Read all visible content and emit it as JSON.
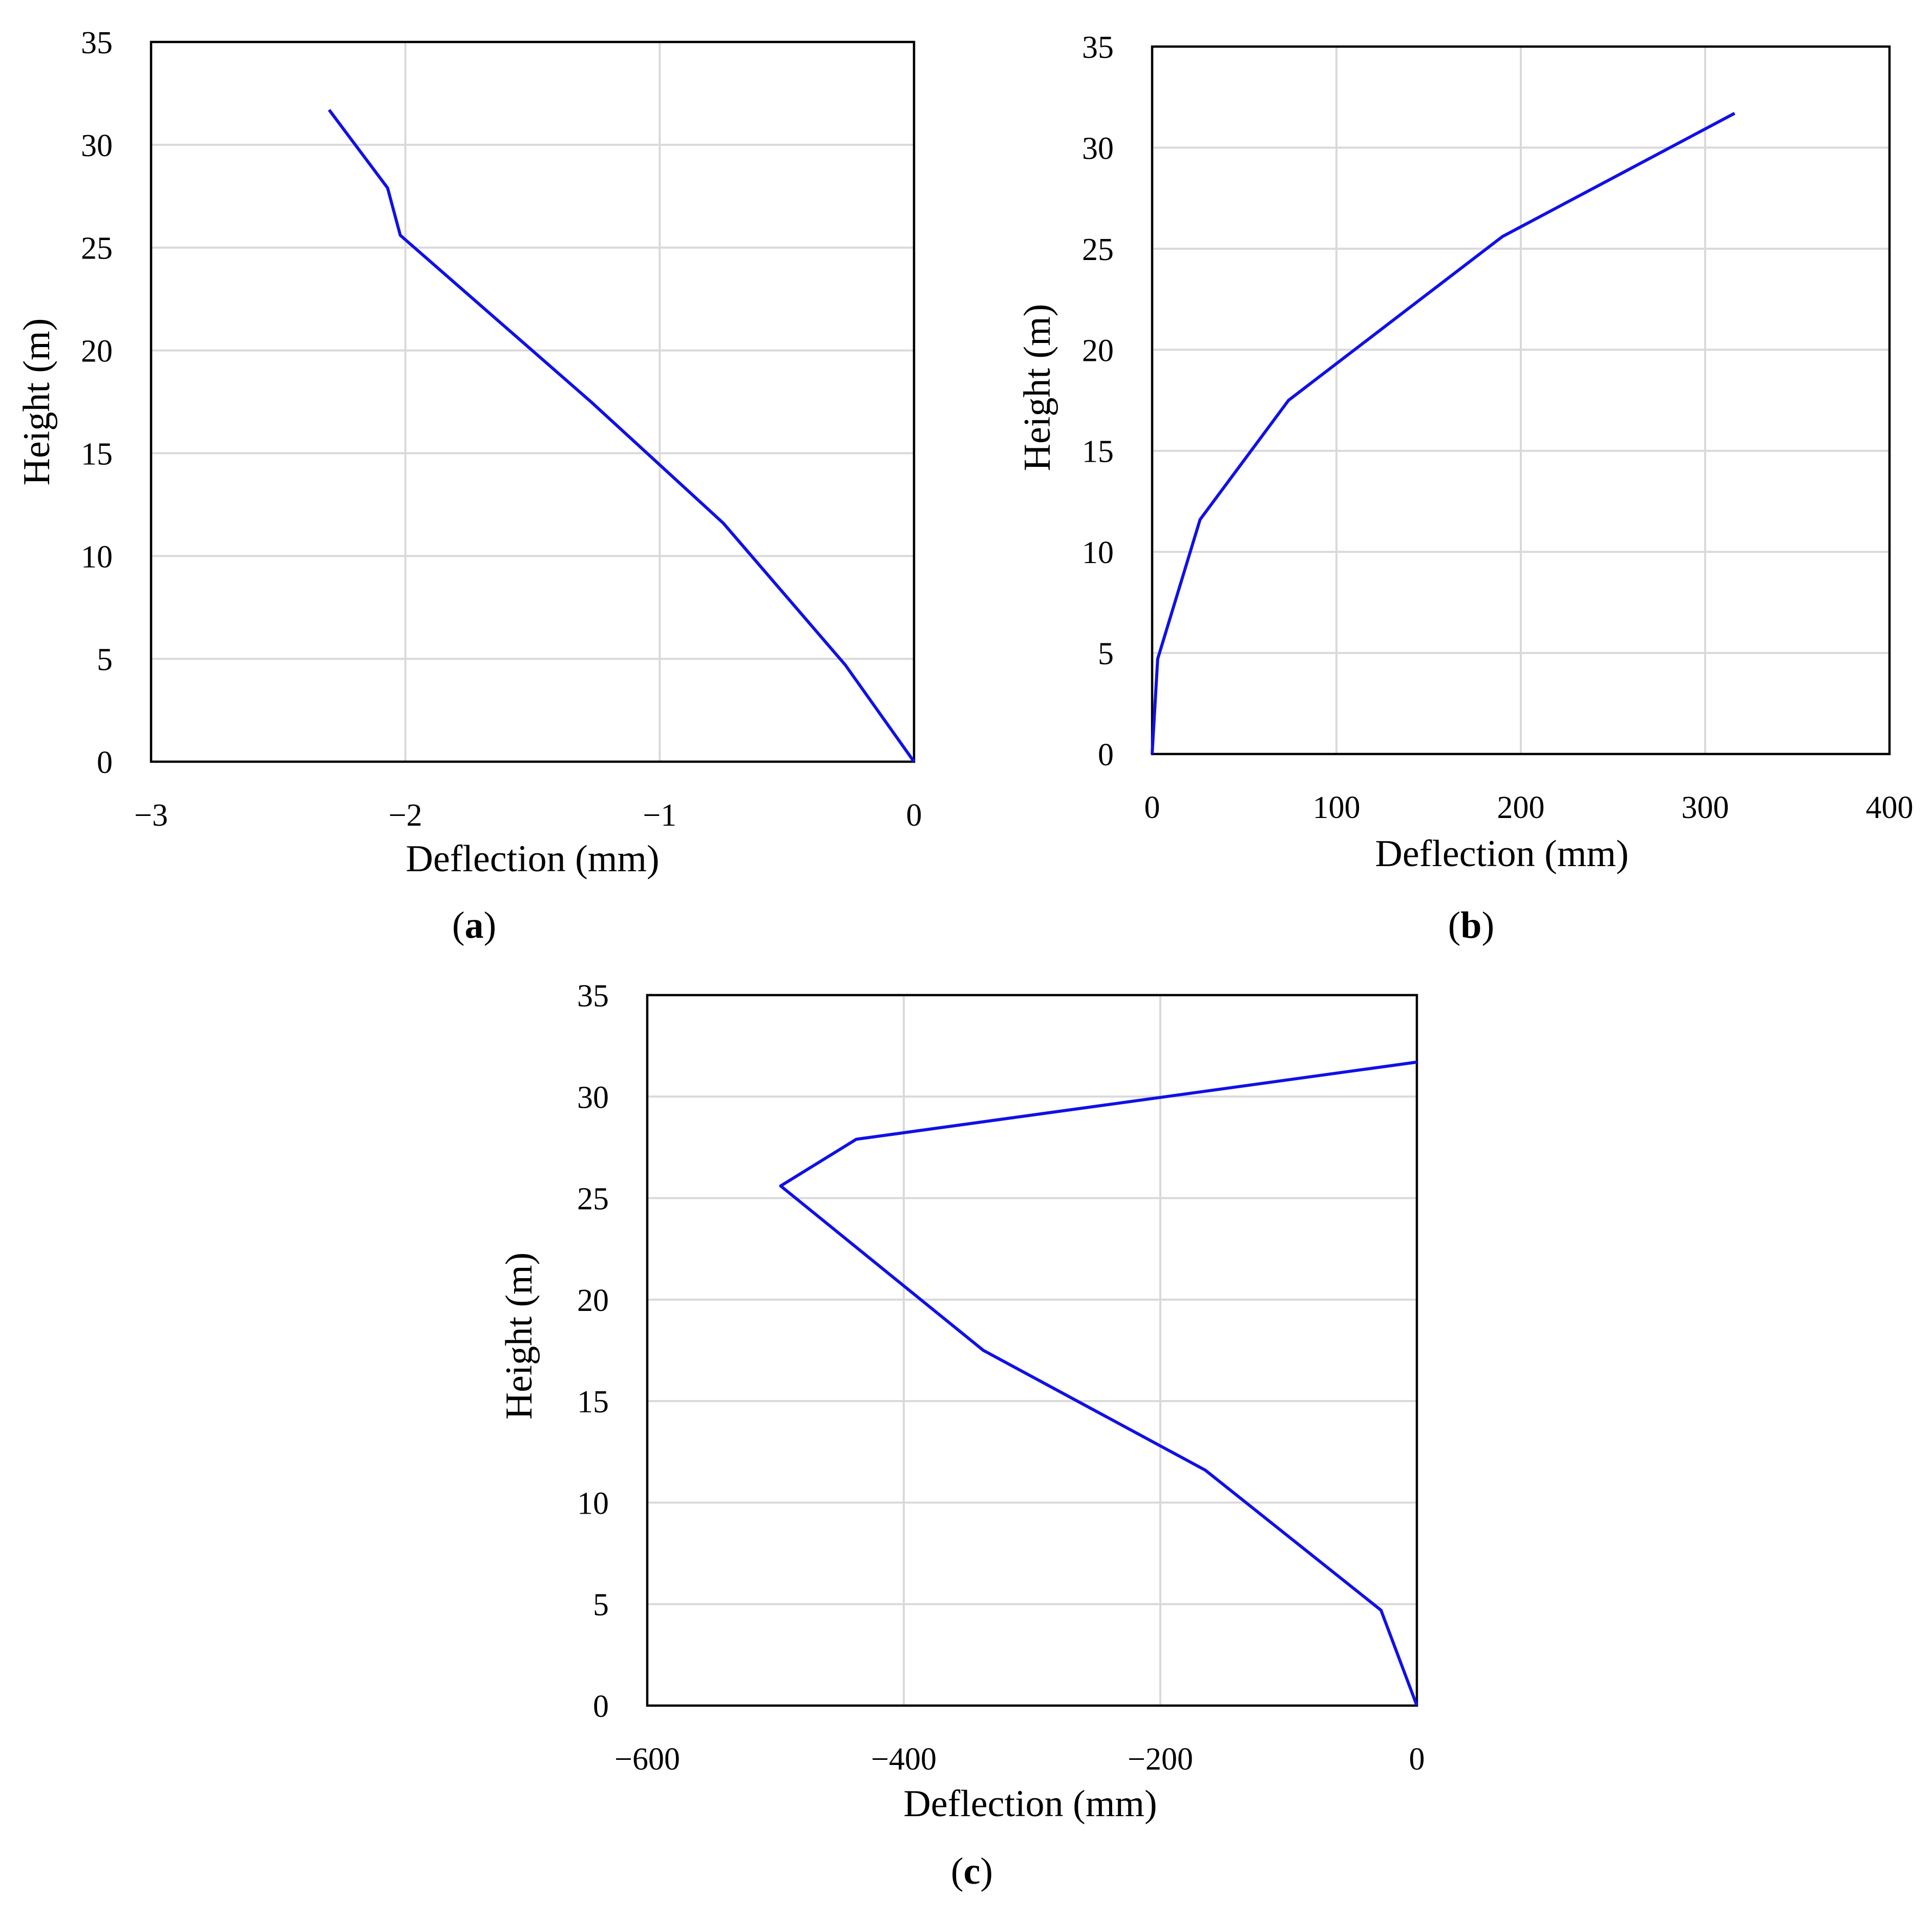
{
  "colors": {
    "series": "#1010E8",
    "grid": "#D9D9D9",
    "frame": "#000000"
  },
  "chart_data": [
    {
      "panel": "a",
      "type": "line",
      "xlabel": "Deflection (mm)",
      "ylabel": "Height (m)",
      "xlim": [
        -3,
        0
      ],
      "ylim": [
        0,
        35
      ],
      "xticks": [
        -3,
        -2,
        -1,
        0
      ],
      "xtick_labels": [
        "−3",
        "−2",
        "−1",
        "0"
      ],
      "yticks": [
        0,
        5,
        10,
        15,
        20,
        25,
        30,
        35
      ],
      "ytick_labels": [
        "0",
        "5",
        "10",
        "15",
        "20",
        "25",
        "30",
        "35"
      ],
      "grid": true,
      "series": [
        {
          "x": [
            0,
            -0.27,
            -0.75,
            -1.27,
            -2.02,
            -2.07,
            -2.3
          ],
          "y": [
            0,
            4.7,
            11.6,
            17.5,
            25.6,
            27.9,
            31.7
          ]
        }
      ],
      "caption": {
        "open": "(",
        "letter": "a",
        "close": ")"
      }
    },
    {
      "panel": "b",
      "type": "line",
      "xlabel": "Deflection (mm)",
      "ylabel": "Height (m)",
      "xlim": [
        0,
        400
      ],
      "ylim": [
        0,
        35
      ],
      "xticks": [
        0,
        100,
        200,
        300,
        400
      ],
      "xtick_labels": [
        "0",
        "100",
        "200",
        "300",
        "400"
      ],
      "yticks": [
        0,
        5,
        10,
        15,
        20,
        25,
        30,
        35
      ],
      "ytick_labels": [
        "0",
        "5",
        "10",
        "15",
        "20",
        "25",
        "30",
        "35"
      ],
      "grid": true,
      "series": [
        {
          "x": [
            0,
            3,
            26,
            74,
            190,
            316
          ],
          "y": [
            0,
            4.7,
            11.6,
            17.5,
            25.6,
            31.7
          ]
        }
      ],
      "caption": {
        "open": "(",
        "letter": "b",
        "close": ")"
      }
    },
    {
      "panel": "c",
      "type": "line",
      "xlabel": "Deflection (mm)",
      "ylabel": "Height (m)",
      "xlim": [
        -600,
        0
      ],
      "ylim": [
        0,
        35
      ],
      "xticks": [
        -600,
        -400,
        -200,
        0
      ],
      "xtick_labels": [
        "−600",
        "−400",
        "−200",
        "0"
      ],
      "yticks": [
        0,
        5,
        10,
        15,
        20,
        25,
        30,
        35
      ],
      "ytick_labels": [
        "0",
        "5",
        "10",
        "15",
        "20",
        "25",
        "30",
        "35"
      ],
      "grid": true,
      "series": [
        {
          "x": [
            0,
            -28,
            -165,
            -338,
            -496,
            -437,
            0
          ],
          "y": [
            0,
            4.7,
            11.6,
            17.5,
            25.6,
            27.9,
            31.7
          ]
        }
      ],
      "caption": {
        "open": "(",
        "letter": "c",
        "close": ")"
      }
    }
  ]
}
